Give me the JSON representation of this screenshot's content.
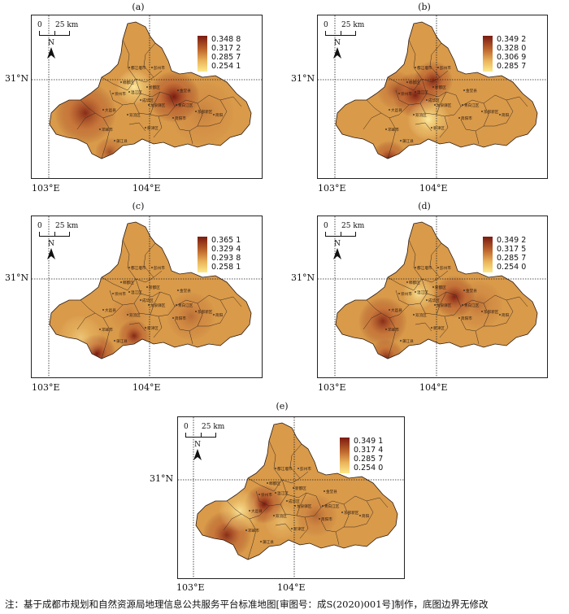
{
  "panels": [
    {
      "label": "(a)",
      "scale": "25 km",
      "scale_zero": "0",
      "north": "N",
      "lat_label": "31°N",
      "lon_labels": [
        "103°E",
        "104°E"
      ],
      "legend": [
        "0.348 8",
        "0.317 2",
        "0.285 7",
        "0.254 1"
      ],
      "legend_colors": [
        "#7a1a10",
        "#fde98a"
      ]
    },
    {
      "label": "(b)",
      "scale": "25 km",
      "scale_zero": "0",
      "north": "N",
      "lat_label": "31°N",
      "lon_labels": [
        "103°E",
        "104°E"
      ],
      "legend": [
        "0.349 2",
        "0.328 0",
        "0.306 9",
        "0.285 7"
      ],
      "legend_colors": [
        "#7a1a10",
        "#fde98a"
      ]
    },
    {
      "label": "(c)",
      "scale": "25 km",
      "scale_zero": "0",
      "north": "N",
      "lat_label": "31°N",
      "lon_labels": [
        "103°E",
        "104°E"
      ],
      "legend": [
        "0.365 1",
        "0.329 4",
        "0.293 8",
        "0.258 1"
      ],
      "legend_colors": [
        "#7a1a10",
        "#fde98a"
      ]
    },
    {
      "label": "(d)",
      "scale": "25 km",
      "scale_zero": "0",
      "north": "N",
      "lat_label": "31°N",
      "lon_labels": [
        "103°E",
        "104°E"
      ],
      "legend": [
        "0.349 2",
        "0.317 5",
        "0.285 7",
        "0.254 0"
      ],
      "legend_colors": [
        "#7a1a10",
        "#fde98a"
      ]
    },
    {
      "label": "(e)",
      "scale": "25 km",
      "scale_zero": "0",
      "north": "N",
      "lat_label": "31°N",
      "lon_labels": [
        "103°E",
        "104°E"
      ],
      "legend": [
        "0.349 1",
        "0.317 4",
        "0.285 7",
        "0.254 0"
      ],
      "legend_colors": [
        "#7a1a10",
        "#fde98a"
      ]
    }
  ],
  "note": "注：基于成都市规划和自然资源局地理信息公共服务平台标准地图[审图号：成S(2020)001号]制作，底图边界无修改"
}
